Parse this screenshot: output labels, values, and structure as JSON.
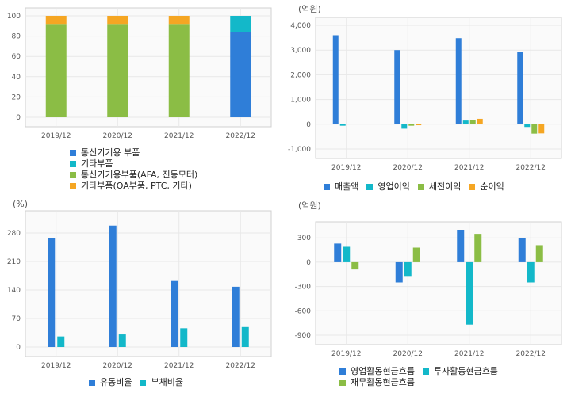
{
  "colors": {
    "blue": "#2f7ed8",
    "cyan": "#13b8c9",
    "green": "#8bbd45",
    "orange": "#f5a623",
    "grid": "#e8e8e8",
    "frame": "#d0d0d0",
    "plot_bg": "#fafafa"
  },
  "chart_data": [
    {
      "type": "bar",
      "stacked": true,
      "title": "",
      "categories": [
        "2019/12",
        "2020/12",
        "2021/12",
        "2022/12"
      ],
      "y_ticks": [
        "0",
        "20",
        "40",
        "60",
        "80",
        "100"
      ],
      "ylim": [
        0,
        100
      ],
      "series": [
        {
          "name": "통신기기용 부품",
          "color": "#2f7ed8",
          "values": [
            0,
            0,
            0,
            84
          ]
        },
        {
          "name": "기타부품",
          "color": "#13b8c9",
          "values": [
            0,
            0,
            0,
            16
          ]
        },
        {
          "name": "통신기기용부품(AFA, 진동모터)",
          "color": "#8bbd45",
          "values": [
            92,
            92,
            92,
            0
          ]
        },
        {
          "name": "기타부품(OA부품, PTC, 기타)",
          "color": "#f5a623",
          "values": [
            8,
            8,
            8,
            0
          ]
        }
      ],
      "legend": "bottom-left"
    },
    {
      "type": "bar",
      "unit": "(억원)",
      "categories": [
        "2019/12",
        "2020/12",
        "2021/12",
        "2022/12"
      ],
      "y_ticks": [
        "-1,000",
        "0",
        "1,000",
        "2,000",
        "3,000",
        "4,000"
      ],
      "ylim": [
        -1000,
        4000
      ],
      "series": [
        {
          "name": "매출액",
          "color": "#2f7ed8",
          "values": [
            3600,
            3000,
            3480,
            2920
          ]
        },
        {
          "name": "영업이익",
          "color": "#13b8c9",
          "values": [
            -60,
            -180,
            150,
            -110
          ]
        },
        {
          "name": "세전이익",
          "color": "#8bbd45",
          "values": [
            0,
            -60,
            180,
            -380
          ]
        },
        {
          "name": "순이익",
          "color": "#f5a623",
          "values": [
            0,
            -40,
            220,
            -370
          ]
        }
      ],
      "legend": "bottom"
    },
    {
      "type": "bar",
      "unit": "(%)",
      "categories": [
        "2019/12",
        "2020/12",
        "2021/12",
        "2022/12"
      ],
      "y_ticks": [
        "0",
        "70",
        "140",
        "210",
        "280"
      ],
      "ylim": [
        0,
        315
      ],
      "series": [
        {
          "name": "유동비율",
          "color": "#2f7ed8",
          "values": [
            268,
            298,
            162,
            148
          ]
        },
        {
          "name": "부채비율",
          "color": "#13b8c9",
          "values": [
            26,
            31,
            46,
            49
          ]
        }
      ],
      "legend": "bottom"
    },
    {
      "type": "bar",
      "unit": "(억원)",
      "categories": [
        "2019/12",
        "2020/12",
        "2021/12",
        "2022/12"
      ],
      "y_ticks": [
        "-900",
        "-600",
        "-300",
        "0",
        "300"
      ],
      "ylim": [
        -900,
        400
      ],
      "series": [
        {
          "name": "영업활동현금흐름",
          "color": "#2f7ed8",
          "values": [
            230,
            -250,
            400,
            300
          ]
        },
        {
          "name": "투자활동현금흐름",
          "color": "#13b8c9",
          "values": [
            190,
            -170,
            -770,
            -250
          ]
        },
        {
          "name": "재무활동현금흐름",
          "color": "#8bbd45",
          "values": [
            -90,
            180,
            350,
            210
          ]
        }
      ],
      "legend": "bottom"
    }
  ]
}
